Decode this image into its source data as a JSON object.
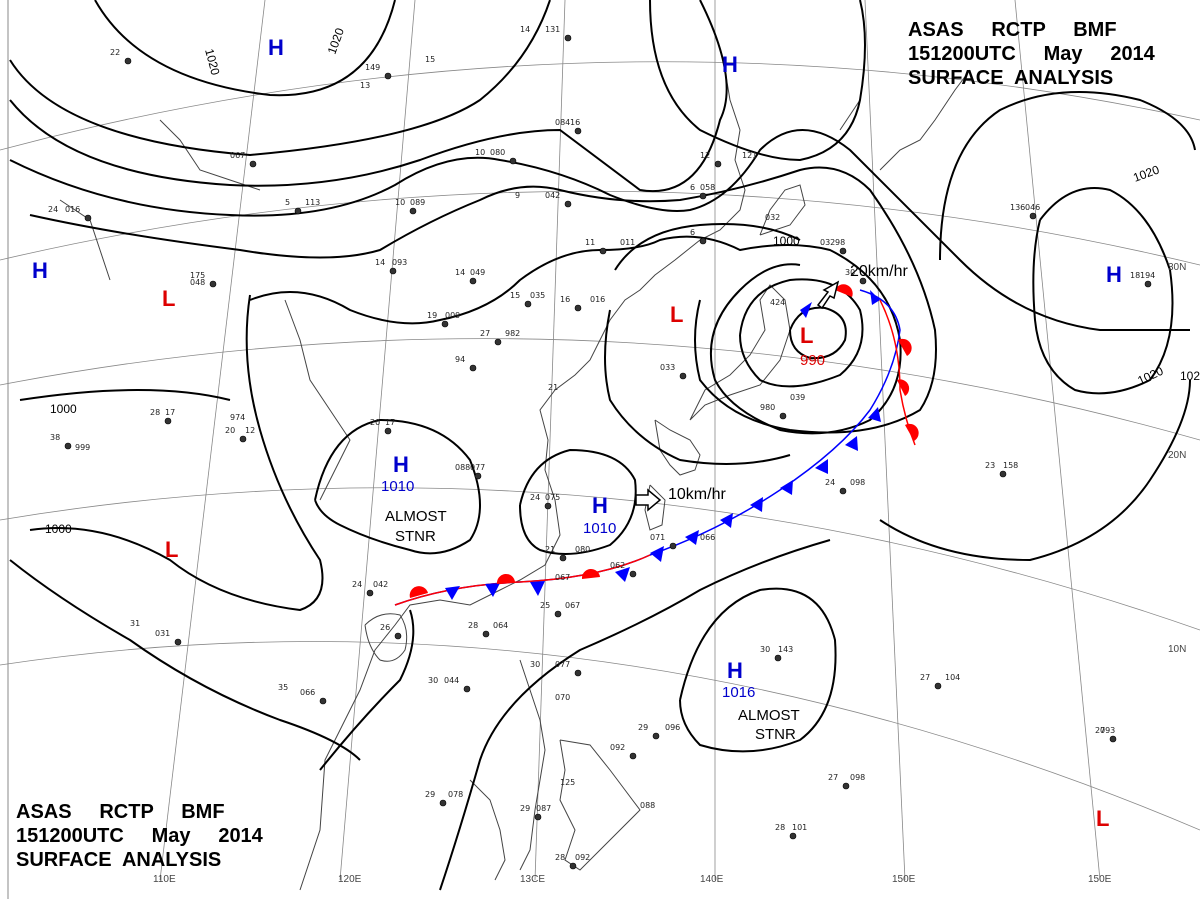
{
  "header": {
    "line1": "ASAS     RCTP     BMF",
    "line2": "151200UTC     May     2014",
    "line3": "SURFACE  ANALYSIS"
  },
  "footer": {
    "line1": "ASAS     RCTP     BMF",
    "line2": "151200UTC     May     2014",
    "line3": "SURFACE  ANALYSIS"
  },
  "longitudes": [
    "110E",
    "120E",
    "13CE",
    "140E",
    "150E"
  ],
  "latitudes": [
    "30N",
    "20N",
    "10N"
  ],
  "isobar_labels": [
    "1020",
    "1020",
    "1020",
    "1020",
    "1000",
    "1000",
    "1000",
    "1020"
  ],
  "pressure_centers": [
    {
      "type": "H",
      "value": "",
      "color": "#0000cc"
    },
    {
      "type": "H",
      "value": "",
      "color": "#0000cc"
    },
    {
      "type": "H",
      "value": "",
      "color": "#0000cc"
    },
    {
      "type": "H",
      "value": "",
      "color": "#0000cc"
    },
    {
      "type": "H",
      "value": "1010",
      "color": "#0000cc"
    },
    {
      "type": "H",
      "value": "1010",
      "color": "#0000cc"
    },
    {
      "type": "H",
      "value": "1016",
      "color": "#0000cc"
    },
    {
      "type": "L",
      "value": "",
      "color": "#dd0000"
    },
    {
      "type": "L",
      "value": "",
      "color": "#dd0000"
    },
    {
      "type": "L",
      "value": "",
      "color": "#dd0000"
    },
    {
      "type": "L",
      "value": "990",
      "color": "#dd0000"
    },
    {
      "type": "L",
      "value": "",
      "color": "#dd0000"
    }
  ],
  "annotations": {
    "stnr1": "ALMOST",
    "stnr1b": "STNR",
    "stnr2": "ALMOST",
    "stnr2b": "STNR",
    "motion1": "20km/hr",
    "motion2": "10km/hr"
  },
  "colors": {
    "high": "#0000cc",
    "low": "#dd0000",
    "cold_front": "#0000ff",
    "warm_front": "#ff0000"
  },
  "station_values": [
    "22",
    "14",
    "131",
    "15",
    "149",
    "13",
    "084",
    "16",
    "067",
    "10",
    "080",
    "9",
    "042",
    "24",
    "016",
    "048",
    "5",
    "113",
    "10",
    "089",
    "14",
    "093",
    "14",
    "049",
    "15",
    "035",
    "16",
    "016",
    "11",
    "011",
    "19",
    "009",
    "27",
    "982",
    "12",
    "121",
    "6",
    "058",
    "6",
    "032",
    "032",
    "98",
    "30",
    "424",
    "94",
    "21",
    "033",
    "039",
    "980",
    "974",
    "20",
    "17",
    "088",
    "077",
    "24",
    "075",
    "21",
    "080",
    "071",
    "066",
    "062",
    "067",
    "28",
    "064",
    "25",
    "067",
    "24",
    "042",
    "26",
    "31",
    "031",
    "30",
    "044",
    "35",
    "066",
    "30",
    "077",
    "070",
    "29",
    "096",
    "30",
    "143",
    "27",
    "104",
    "27",
    "098",
    "28",
    "101",
    "27",
    "093",
    "29",
    "078",
    "29",
    "087",
    "092",
    "088",
    "28",
    "092",
    "23",
    "158",
    "24",
    "098",
    "38",
    "999",
    "18",
    "194",
    "28",
    "17",
    "20",
    "12",
    "136",
    "046",
    "175",
    "125"
  ]
}
